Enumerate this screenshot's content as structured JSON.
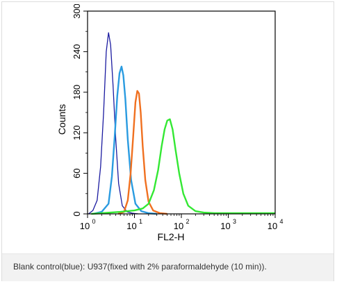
{
  "chart_data": {
    "type": "line",
    "title": "",
    "xlabel": "FL2-H",
    "ylabel": "Counts",
    "x_scale": "log",
    "xlim": [
      1,
      10000
    ],
    "ylim": [
      0,
      300
    ],
    "x_ticks": [
      {
        "base": "10",
        "exp": "0"
      },
      {
        "base": "10",
        "exp": "1"
      },
      {
        "base": "10",
        "exp": "2"
      },
      {
        "base": "10",
        "exp": "3"
      },
      {
        "base": "10",
        "exp": "4"
      }
    ],
    "y_ticks": [
      "0",
      "60",
      "120",
      "180",
      "240",
      "300"
    ],
    "grid": false,
    "series": [
      {
        "color": "#1a1aa0",
        "x": [
          1.05,
          1.3,
          1.6,
          1.9,
          2.2,
          2.5,
          2.8,
          3.1,
          3.5,
          4.0,
          4.6,
          5.5,
          7.0,
          9.0,
          12
        ],
        "values": [
          0,
          5,
          20,
          70,
          150,
          240,
          268,
          250,
          190,
          110,
          45,
          12,
          3,
          1,
          0
        ]
      },
      {
        "color": "#2a9be0",
        "x": [
          1.3,
          2.0,
          2.8,
          3.3,
          3.8,
          4.3,
          4.8,
          5.3,
          5.8,
          6.4,
          7.2,
          8.5,
          10.5,
          14,
          20,
          30
        ],
        "values": [
          0,
          3,
          15,
          55,
          115,
          175,
          208,
          218,
          205,
          170,
          110,
          50,
          15,
          4,
          1,
          0
        ]
      },
      {
        "color": "#f07020",
        "x": [
          4.5,
          6.0,
          7.2,
          8.3,
          9.4,
          10.5,
          11.5,
          12.5,
          13.6,
          15,
          17,
          20,
          25,
          35,
          50
        ],
        "values": [
          0,
          3,
          20,
          60,
          115,
          165,
          182,
          178,
          150,
          100,
          50,
          18,
          5,
          1,
          0
        ]
      },
      {
        "color": "#33e833",
        "x": [
          1.2,
          2.0,
          5.0,
          10,
          15,
          20,
          26,
          32,
          38,
          44,
          50,
          57,
          65,
          75,
          90,
          110,
          140,
          200,
          300,
          500,
          1000,
          3000,
          10000
        ],
        "values": [
          0,
          1,
          3,
          5,
          8,
          15,
          35,
          65,
          100,
          125,
          138,
          140,
          125,
          95,
          60,
          30,
          12,
          4,
          2,
          1,
          1,
          1,
          1
        ]
      }
    ]
  },
  "caption": {
    "text": "Blank control(blue): U937(fixed with 2% paraformaldehyde (10 min))."
  }
}
